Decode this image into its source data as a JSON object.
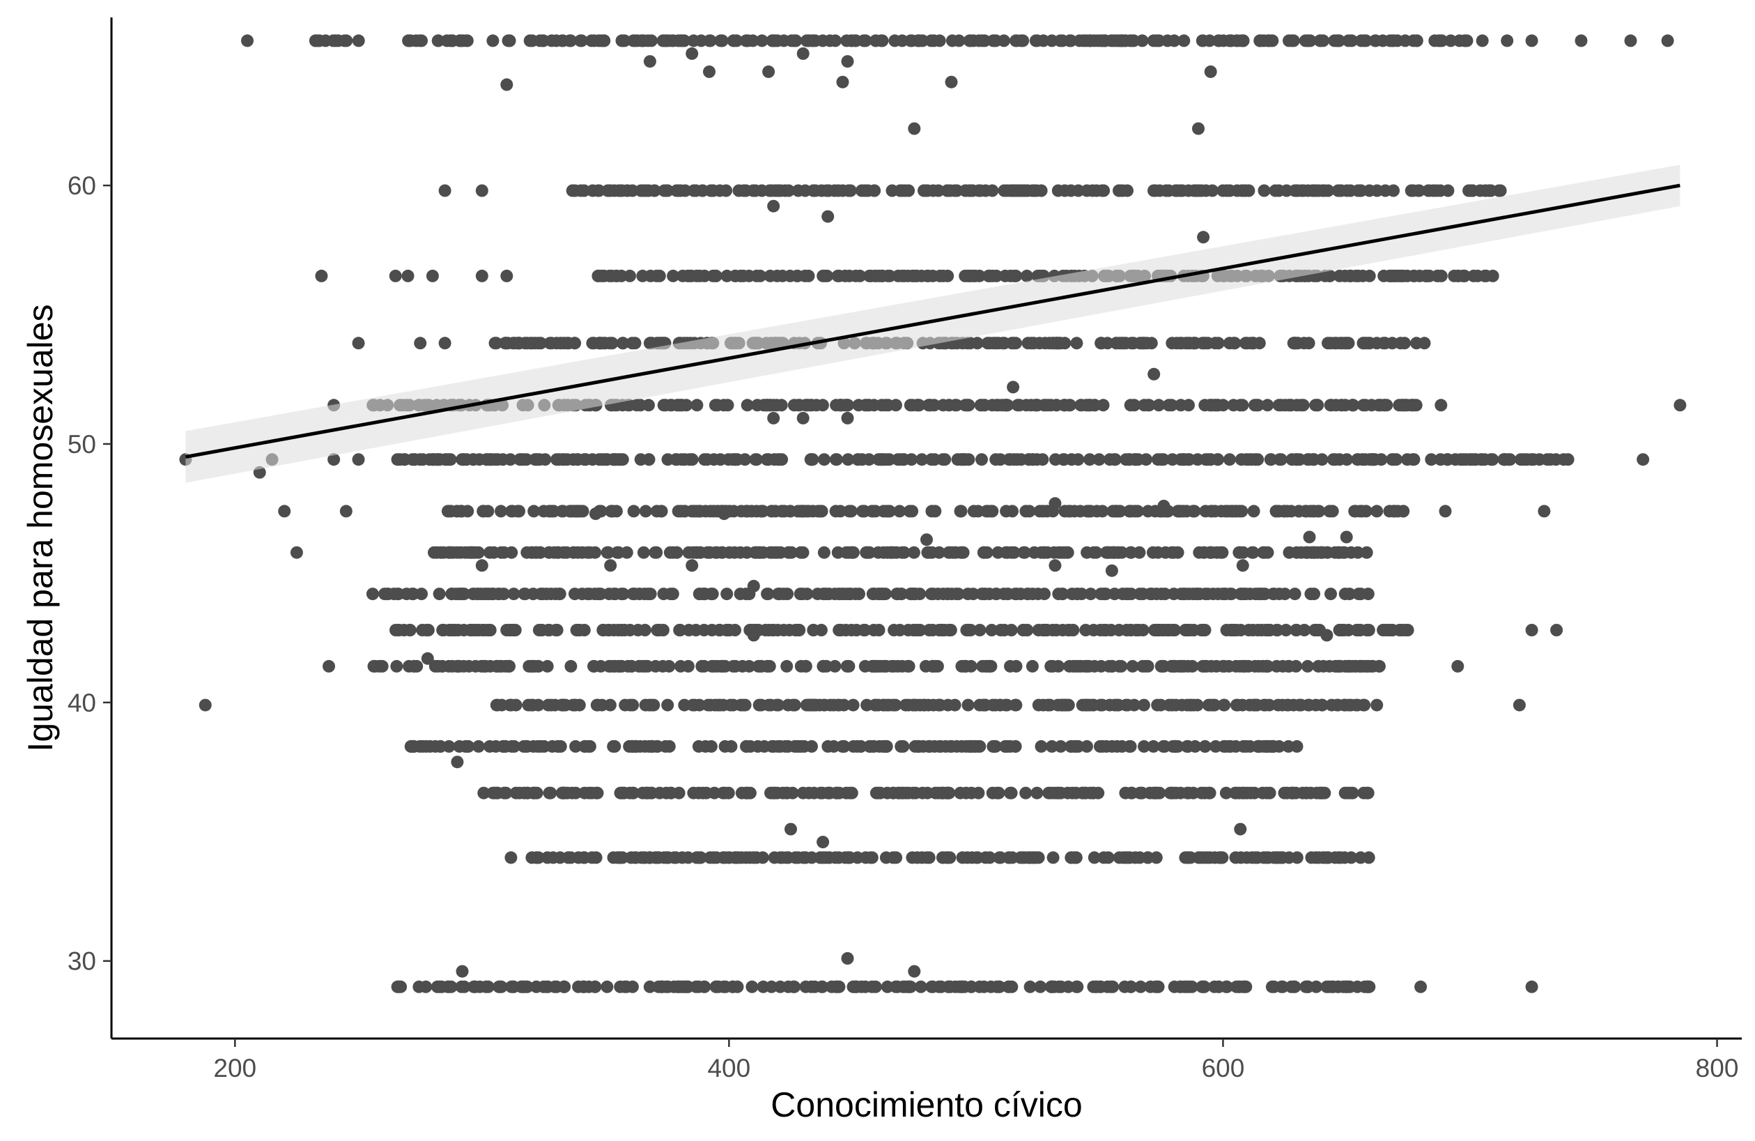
{
  "chart_data": {
    "type": "scatter",
    "title": "",
    "xlabel": "Conocimiento cívico",
    "ylabel": "Igualdad para homosexuales",
    "xlim": [
      150,
      810
    ],
    "ylim": [
      27,
      66.5
    ],
    "x_ticks": [
      200,
      400,
      600,
      800
    ],
    "y_ticks": [
      30,
      40,
      50,
      60
    ],
    "grid": false,
    "legend": "none",
    "colors": {
      "points": "#4d4d4d",
      "trend_line": "#000000",
      "confidence_band": "#dddddd"
    },
    "trend": {
      "method": "linear",
      "x": [
        180,
        785
      ],
      "y": [
        49.5,
        60.0
      ],
      "ci_halfwidth": [
        1.0,
        0.8
      ]
    },
    "dense_rows": [
      {
        "y": 65.6,
        "x_min": 230,
        "x_max": 700,
        "extras": [
          205,
          780,
          765,
          745,
          725,
          715,
          705
        ]
      },
      {
        "y": 59.8,
        "x_min": 335,
        "x_max": 715,
        "extras": [
          285,
          300
        ]
      },
      {
        "y": 56.5,
        "x_min": 345,
        "x_max": 710,
        "extras": [
          235,
          265,
          270,
          280,
          300,
          310
        ]
      },
      {
        "y": 53.9,
        "x_min": 305,
        "x_max": 690,
        "extras": [
          250,
          275,
          285
        ]
      },
      {
        "y": 51.5,
        "x_min": 255,
        "x_max": 690,
        "extras": [
          240,
          785
        ]
      },
      {
        "y": 49.4,
        "x_min": 265,
        "x_max": 740,
        "extras": [
          180,
          215,
          240,
          250,
          770
        ]
      },
      {
        "y": 47.4,
        "x_min": 285,
        "x_max": 675,
        "extras": [
          220,
          245,
          690,
          730
        ]
      },
      {
        "y": 45.8,
        "x_min": 280,
        "x_max": 660,
        "extras": [
          225
        ]
      },
      {
        "y": 44.2,
        "x_min": 255,
        "x_max": 660,
        "extras": []
      },
      {
        "y": 42.8,
        "x_min": 265,
        "x_max": 675,
        "extras": [
          725,
          735
        ]
      },
      {
        "y": 41.4,
        "x_min": 255,
        "x_max": 665,
        "extras": [
          238,
          695
        ]
      },
      {
        "y": 39.9,
        "x_min": 300,
        "x_max": 665,
        "extras": [
          188,
          720
        ]
      },
      {
        "y": 38.3,
        "x_min": 270,
        "x_max": 630,
        "extras": []
      },
      {
        "y": 36.5,
        "x_min": 300,
        "x_max": 660,
        "extras": []
      },
      {
        "y": 34.0,
        "x_min": 310,
        "x_max": 660,
        "extras": []
      },
      {
        "y": 29.0,
        "x_min": 265,
        "x_max": 660,
        "extras": [
          680,
          725
        ]
      }
    ],
    "scattered_points": [
      {
        "x": 310,
        "y": 63.9
      },
      {
        "x": 368,
        "y": 64.8
      },
      {
        "x": 385,
        "y": 65.1
      },
      {
        "x": 392,
        "y": 64.4
      },
      {
        "x": 416,
        "y": 64.4
      },
      {
        "x": 430,
        "y": 65.1
      },
      {
        "x": 446,
        "y": 64.0
      },
      {
        "x": 448,
        "y": 64.8
      },
      {
        "x": 490,
        "y": 64.0
      },
      {
        "x": 595,
        "y": 64.4
      },
      {
        "x": 475,
        "y": 62.2
      },
      {
        "x": 590,
        "y": 62.2
      },
      {
        "x": 418,
        "y": 59.2
      },
      {
        "x": 440,
        "y": 58.8
      },
      {
        "x": 592,
        "y": 58.0
      },
      {
        "x": 515,
        "y": 52.2
      },
      {
        "x": 572,
        "y": 52.7
      },
      {
        "x": 418,
        "y": 51.0
      },
      {
        "x": 430,
        "y": 51.0
      },
      {
        "x": 448,
        "y": 51.0
      },
      {
        "x": 210,
        "y": 48.9
      },
      {
        "x": 410,
        "y": 44.5
      },
      {
        "x": 532,
        "y": 45.3
      },
      {
        "x": 555,
        "y": 45.1
      },
      {
        "x": 608,
        "y": 45.3
      },
      {
        "x": 300,
        "y": 45.3
      },
      {
        "x": 352,
        "y": 45.3
      },
      {
        "x": 385,
        "y": 45.3
      },
      {
        "x": 480,
        "y": 46.3
      },
      {
        "x": 635,
        "y": 46.4
      },
      {
        "x": 650,
        "y": 46.4
      },
      {
        "x": 642,
        "y": 42.6
      },
      {
        "x": 410,
        "y": 42.6
      },
      {
        "x": 278,
        "y": 41.7
      },
      {
        "x": 290,
        "y": 37.7
      },
      {
        "x": 425,
        "y": 35.1
      },
      {
        "x": 438,
        "y": 34.6
      },
      {
        "x": 607,
        "y": 35.1
      },
      {
        "x": 448,
        "y": 30.1
      },
      {
        "x": 475,
        "y": 29.6
      },
      {
        "x": 292,
        "y": 29.6
      },
      {
        "x": 532,
        "y": 47.7
      },
      {
        "x": 576,
        "y": 47.6
      },
      {
        "x": 346,
        "y": 47.3
      },
      {
        "x": 398,
        "y": 47.3
      }
    ]
  }
}
